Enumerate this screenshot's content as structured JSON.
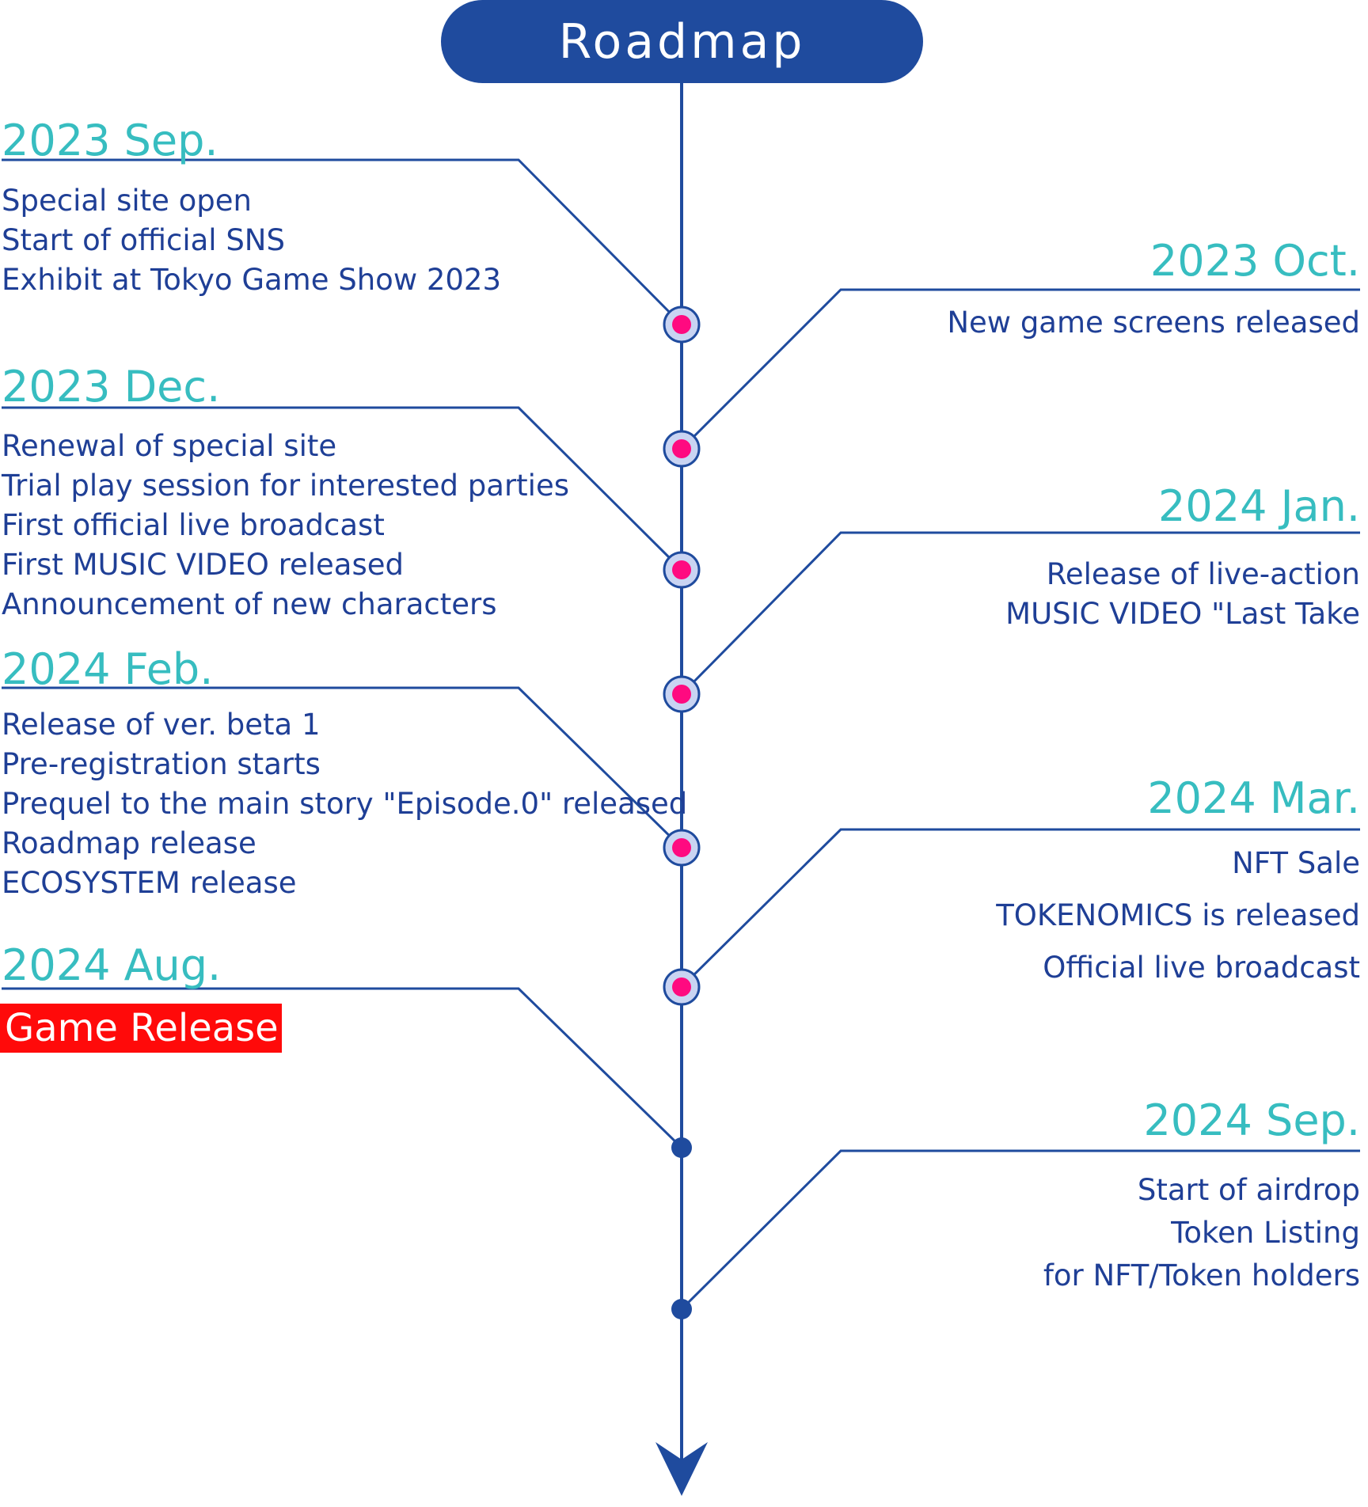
{
  "title": "Roadmap",
  "colors": {
    "title_bg": "#1f4b9e",
    "line": "#1f4b9e",
    "date_text": "#37bdc0",
    "item_text": "#1f3f96",
    "milestone_fill": "#ff0a80",
    "milestone_ring": "#c9d4f2",
    "highlight_bg": "#ff0a0a"
  },
  "milestones": [
    {
      "side": "left",
      "date": "2023 Sep.",
      "items": [
        "Special site open",
        "Start of official SNS",
        "Exhibit at Tokyo Game Show 2023"
      ],
      "marker": "pink-dot"
    },
    {
      "side": "right",
      "date": "2023 Oct.",
      "items": [
        "New game screens released"
      ],
      "marker": "pink-dot"
    },
    {
      "side": "left",
      "date": "2023 Dec.",
      "items": [
        "Renewal of special site",
        "Trial play session for interested parties",
        "First official live broadcast",
        "First MUSIC VIDEO released",
        "Announcement of new characters"
      ],
      "marker": "pink-dot"
    },
    {
      "side": "right",
      "date": "2024 Jan.",
      "items": [
        "Release of live-action",
        "MUSIC VIDEO \"Last Take"
      ],
      "marker": "pink-dot"
    },
    {
      "side": "left",
      "date": "2024 Feb.",
      "items": [
        "Release of ver. beta 1",
        "Pre-registration starts",
        "Prequel to the main story \"Episode.0\" released",
        "Roadmap release",
        "ECOSYSTEM release"
      ],
      "marker": "pink-dot"
    },
    {
      "side": "right",
      "date": "2024 Mar.",
      "items": [
        "NFT Sale",
        "TOKENOMICS is released",
        "Official live broadcast"
      ],
      "marker": "pink-dot"
    },
    {
      "side": "left",
      "date": "2024 Aug.",
      "items": [
        "Game Release"
      ],
      "marker": "small-dot",
      "highlighted": true
    },
    {
      "side": "right",
      "date": "2024 Sep.",
      "items": [
        "Start of airdrop",
        "Token Listing",
        "for NFT/Token holders"
      ],
      "marker": "small-dot"
    }
  ],
  "end_marker": "down-arrow-icon"
}
